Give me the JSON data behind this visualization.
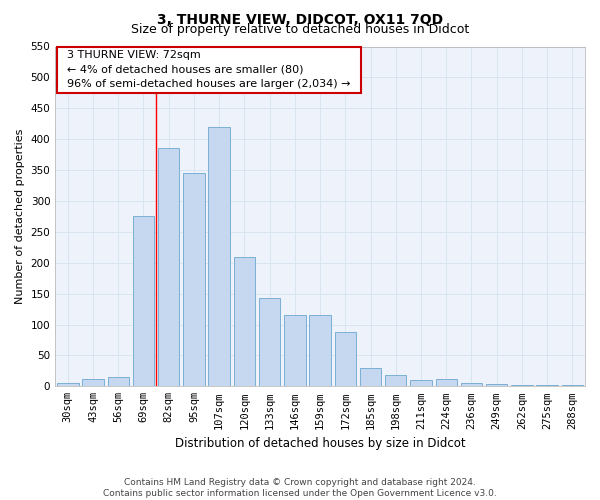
{
  "title": "3, THURNE VIEW, DIDCOT, OX11 7QD",
  "subtitle": "Size of property relative to detached houses in Didcot",
  "xlabel": "Distribution of detached houses by size in Didcot",
  "ylabel": "Number of detached properties",
  "footer1": "Contains HM Land Registry data © Crown copyright and database right 2024.",
  "footer2": "Contains public sector information licensed under the Open Government Licence v3.0.",
  "categories": [
    "30sqm",
    "43sqm",
    "56sqm",
    "69sqm",
    "82sqm",
    "95sqm",
    "107sqm",
    "120sqm",
    "133sqm",
    "146sqm",
    "159sqm",
    "172sqm",
    "185sqm",
    "198sqm",
    "211sqm",
    "224sqm",
    "236sqm",
    "249sqm",
    "262sqm",
    "275sqm",
    "288sqm"
  ],
  "values": [
    5,
    12,
    15,
    275,
    385,
    345,
    420,
    210,
    143,
    115,
    115,
    88,
    30,
    18,
    10,
    12,
    5,
    3,
    2,
    2,
    2
  ],
  "bar_color": "#c5d8f0",
  "bar_edge_color": "#7aafd4",
  "grid_color": "#d8e4f0",
  "bg_color": "#eef3fb",
  "red_line_index": 3.5,
  "annotation_text": "  3 THURNE VIEW: 72sqm  \n  ← 4% of detached houses are smaller (80)  \n  96% of semi-detached houses are larger (2,034) →  ",
  "annotation_box_color": "#ffffff",
  "annotation_box_edge": "#cc0000",
  "ylim": [
    0,
    550
  ],
  "yticks": [
    0,
    50,
    100,
    150,
    200,
    250,
    300,
    350,
    400,
    450,
    500,
    550
  ],
  "title_fontsize": 10,
  "subtitle_fontsize": 9,
  "xlabel_fontsize": 8.5,
  "ylabel_fontsize": 8,
  "tick_fontsize": 7.5,
  "footer_fontsize": 6.5
}
